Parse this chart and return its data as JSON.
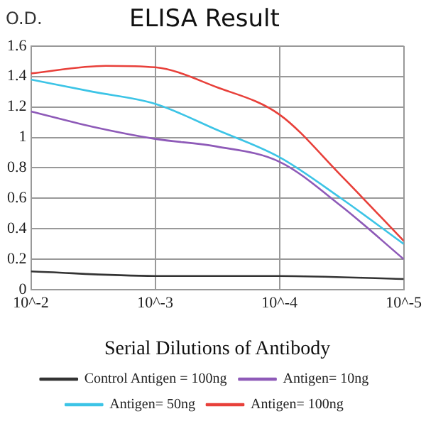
{
  "chart_data": {
    "type": "line",
    "title": "ELISA Result",
    "ylabel": "O.D.",
    "xlabel": "Serial Dilutions of Antibody",
    "xlim": [
      0.01,
      1e-05
    ],
    "log": "x",
    "xticks": [
      {
        "value": 0.01,
        "label": "10^-2"
      },
      {
        "value": 0.001,
        "label": "10^-3"
      },
      {
        "value": 0.0001,
        "label": "10^-4"
      },
      {
        "value": 1e-05,
        "label": "10^-5"
      }
    ],
    "ylim": [
      0,
      1.6
    ],
    "yticks": [
      0,
      0.2,
      0.4,
      0.6,
      0.8,
      1,
      1.2,
      1.4,
      1.6
    ],
    "grid": true,
    "legend": "bottom",
    "marker": "none",
    "line_style": "solid",
    "series": [
      {
        "name": "Control Antigen = 100ng",
        "color": "#333333",
        "x": [
          0.01,
          0.001,
          0.0001,
          1e-05
        ],
        "values": [
          0.12,
          0.09,
          0.09,
          0.07
        ]
      },
      {
        "name": "Antigen= 10ng",
        "color": "#8e5ab8",
        "x": [
          0.01,
          0.0032,
          0.001,
          0.00032,
          0.0001,
          3.2e-05,
          1e-05
        ],
        "values": [
          1.17,
          1.07,
          0.99,
          0.94,
          0.84,
          0.55,
          0.2
        ]
      },
      {
        "name": "Antigen= 50ng",
        "color": "#3cc4e6",
        "x": [
          0.01,
          0.0032,
          0.001,
          0.00032,
          0.0001,
          3.2e-05,
          1e-05
        ],
        "values": [
          1.38,
          1.3,
          1.22,
          1.05,
          0.87,
          0.6,
          0.3
        ]
      },
      {
        "name": "Antigen= 100ng",
        "color": "#e8403a",
        "x": [
          0.01,
          0.0025,
          0.001,
          0.00032,
          0.0001,
          3.2e-05,
          1e-05
        ],
        "values": [
          1.42,
          1.47,
          1.46,
          1.33,
          1.15,
          0.75,
          0.32
        ]
      }
    ]
  }
}
